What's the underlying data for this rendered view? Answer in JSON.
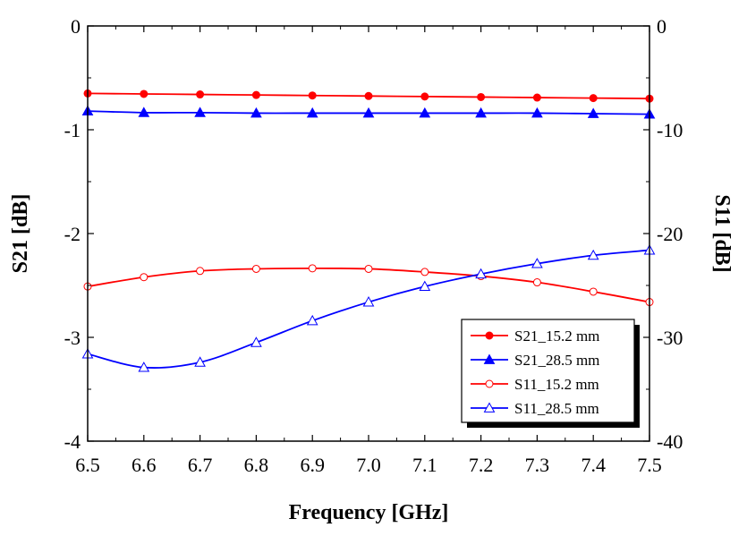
{
  "chart_data": {
    "type": "line",
    "xlabel": "Frequency [GHz]",
    "ylabel_left": "S21 [dB]",
    "ylabel_right": "S11 [dB]",
    "xlim": [
      6.5,
      7.5
    ],
    "ylim_left": [
      -4,
      0
    ],
    "ylim_right": [
      -40,
      0
    ],
    "x_ticks": [
      "6.5",
      "6.6",
      "6.7",
      "6.8",
      "6.9",
      "7.0",
      "7.1",
      "7.2",
      "7.3",
      "7.4",
      "7.5"
    ],
    "y_ticks_left": [
      "0",
      "-1",
      "-2",
      "-3",
      "-4"
    ],
    "y_ticks_right": [
      "0",
      "-10",
      "-20",
      "-30",
      "-40"
    ],
    "grid": false,
    "legend_position": "bottom-right",
    "x": [
      6.5,
      6.6,
      6.7,
      6.8,
      6.9,
      7.0,
      7.1,
      7.2,
      7.3,
      7.4,
      7.5
    ],
    "series": [
      {
        "name": "S21_15.2 mm",
        "axis": "left",
        "color": "#ff0000",
        "marker": "filled-circle",
        "values": [
          -0.65,
          -0.655,
          -0.66,
          -0.665,
          -0.67,
          -0.675,
          -0.68,
          -0.685,
          -0.69,
          -0.695,
          -0.7
        ]
      },
      {
        "name": "S21_28.5 mm",
        "axis": "left",
        "color": "#0000ff",
        "marker": "filled-triangle",
        "values": [
          -0.82,
          -0.835,
          -0.835,
          -0.84,
          -0.84,
          -0.84,
          -0.84,
          -0.84,
          -0.84,
          -0.845,
          -0.85
        ]
      },
      {
        "name": "S11_15.2 mm",
        "axis": "right",
        "color": "#ff0000",
        "marker": "open-circle",
        "values": [
          -25.1,
          -24.2,
          -23.6,
          -23.4,
          -23.35,
          -23.4,
          -23.7,
          -24.1,
          -24.7,
          -25.6,
          -26.6
        ]
      },
      {
        "name": "S11_28.5 mm",
        "axis": "right",
        "color": "#0000ff",
        "marker": "open-triangle",
        "values": [
          -31.6,
          -32.9,
          -32.4,
          -30.5,
          -28.4,
          -26.6,
          -25.1,
          -23.9,
          -22.9,
          -22.1,
          -21.6
        ]
      }
    ]
  }
}
